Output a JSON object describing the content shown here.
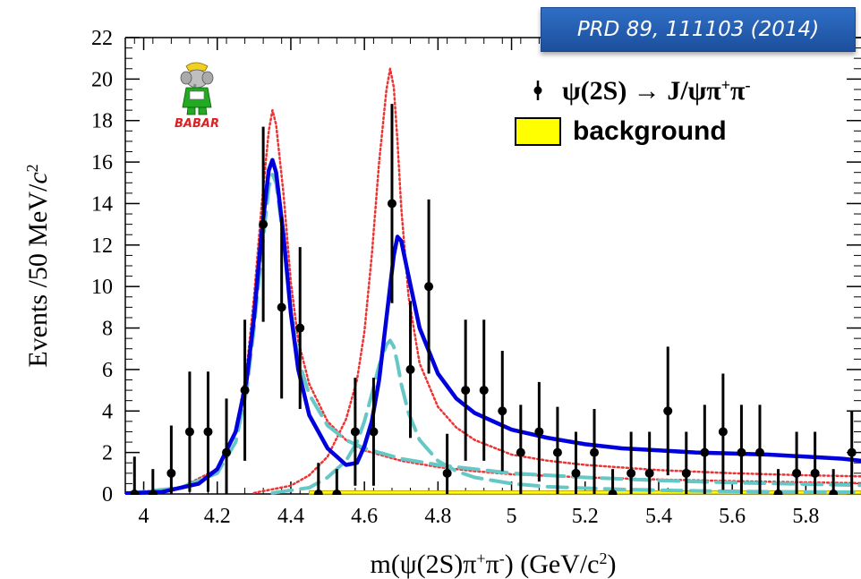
{
  "reference_badge": "PRD 89, 111103 (2014)",
  "logo_text": "BABAR",
  "chart_data": {
    "type": "scatter",
    "title": "",
    "xlabel_parts": [
      "m(ψ(2S)π",
      "+",
      "π",
      "-",
      ") (GeV/c",
      "2",
      ")"
    ],
    "ylabel_parts": [
      "Events /50 MeV/",
      "c",
      "2"
    ],
    "xlim": [
      3.95,
      5.95
    ],
    "ylim": [
      0,
      22
    ],
    "x_ticks": [
      4,
      4.2,
      4.4,
      4.6,
      4.8,
      5,
      5.2,
      5.4,
      5.6,
      5.8
    ],
    "x_tick_labels": [
      "4",
      "4.2",
      "4.4",
      "4.6",
      "4.8",
      "5",
      "5.2",
      "5.4",
      "5.6",
      "5.8"
    ],
    "y_ticks": [
      0,
      2,
      4,
      6,
      8,
      10,
      12,
      14,
      16,
      18,
      20,
      22
    ],
    "y_tick_labels": [
      "0",
      "2",
      "4",
      "6",
      "8",
      "10",
      "12",
      "14",
      "16",
      "18",
      "20",
      "22"
    ],
    "legend": [
      {
        "name_parts": [
          "ψ(2S) → ",
          "J/ψπ",
          "+",
          "π",
          "-"
        ],
        "marker": "point-errorbar"
      },
      {
        "name": "background",
        "marker": "yellow-box",
        "color": "#ffff00"
      }
    ],
    "points": [
      {
        "x": 3.975,
        "y": 0,
        "err": 1.8
      },
      {
        "x": 4.025,
        "y": 0,
        "err": 1.2
      },
      {
        "x": 4.075,
        "y": 1,
        "err": 2.3
      },
      {
        "x": 4.125,
        "y": 3,
        "err": 2.9
      },
      {
        "x": 4.175,
        "y": 3,
        "err": 2.9
      },
      {
        "x": 4.225,
        "y": 2,
        "err": 2.6
      },
      {
        "x": 4.275,
        "y": 5,
        "err": 3.4
      },
      {
        "x": 4.325,
        "y": 13,
        "err": 4.7
      },
      {
        "x": 4.375,
        "y": 9,
        "err": 4.4
      },
      {
        "x": 4.425,
        "y": 8,
        "err": 3.9
      },
      {
        "x": 4.475,
        "y": 0,
        "err": 1.5
      },
      {
        "x": 4.525,
        "y": 0,
        "err": 1.2
      },
      {
        "x": 4.575,
        "y": 3,
        "err": 2.6
      },
      {
        "x": 4.625,
        "y": 3,
        "err": 2.6
      },
      {
        "x": 4.675,
        "y": 14,
        "err": 4.8
      },
      {
        "x": 4.725,
        "y": 6,
        "err": 3.3
      },
      {
        "x": 4.775,
        "y": 10,
        "err": 4.2
      },
      {
        "x": 4.825,
        "y": 1,
        "err": 1.9
      },
      {
        "x": 4.875,
        "y": 5,
        "err": 3.4
      },
      {
        "x": 4.925,
        "y": 5,
        "err": 3.4
      },
      {
        "x": 4.975,
        "y": 4,
        "err": 2.9
      },
      {
        "x": 5.025,
        "y": 2,
        "err": 2.3
      },
      {
        "x": 5.075,
        "y": 3,
        "err": 2.4
      },
      {
        "x": 5.125,
        "y": 2,
        "err": 2.2
      },
      {
        "x": 5.175,
        "y": 1,
        "err": 2.0
      },
      {
        "x": 5.225,
        "y": 2,
        "err": 2.1
      },
      {
        "x": 5.275,
        "y": 0,
        "err": 1.2
      },
      {
        "x": 5.325,
        "y": 1,
        "err": 2.0
      },
      {
        "x": 5.375,
        "y": 1,
        "err": 2.0
      },
      {
        "x": 5.425,
        "y": 4,
        "err": 3.1
      },
      {
        "x": 5.475,
        "y": 1,
        "err": 2.0
      },
      {
        "x": 5.525,
        "y": 2,
        "err": 2.3
      },
      {
        "x": 5.575,
        "y": 3,
        "err": 2.8
      },
      {
        "x": 5.625,
        "y": 2,
        "err": 2.3
      },
      {
        "x": 5.675,
        "y": 2,
        "err": 2.3
      },
      {
        "x": 5.725,
        "y": 0,
        "err": 1.2
      },
      {
        "x": 5.775,
        "y": 1,
        "err": 2.0
      },
      {
        "x": 5.825,
        "y": 1,
        "err": 2.0
      },
      {
        "x": 5.875,
        "y": 0,
        "err": 1.2
      },
      {
        "x": 5.925,
        "y": 2,
        "err": 2.0
      }
    ],
    "curves": [
      {
        "style": "solid",
        "color": "#0000dd",
        "x": [
          3.95,
          4.05,
          4.15,
          4.2,
          4.25,
          4.28,
          4.3,
          4.32,
          4.34,
          4.35,
          4.36,
          4.38,
          4.4,
          4.42,
          4.45,
          4.5,
          4.55,
          4.58,
          4.6,
          4.62,
          4.64,
          4.66,
          4.68,
          4.69,
          4.7,
          4.72,
          4.75,
          4.8,
          4.85,
          4.9,
          5.0,
          5.1,
          5.2,
          5.3,
          5.4,
          5.5,
          5.6,
          5.7,
          5.8,
          5.9,
          5.95
        ],
        "y": [
          0.03,
          0.1,
          0.5,
          1.2,
          3.0,
          5.5,
          8.5,
          12.5,
          15.6,
          16.1,
          15.5,
          12.5,
          8.7,
          6.0,
          3.8,
          2.2,
          1.4,
          1.5,
          2.3,
          3.5,
          5.5,
          8.5,
          11.5,
          12.4,
          12.2,
          10.5,
          8.0,
          5.8,
          4.6,
          3.9,
          3.1,
          2.7,
          2.4,
          2.2,
          2.1,
          2.0,
          1.95,
          1.9,
          1.8,
          1.7,
          1.6
        ]
      },
      {
        "style": "dashed",
        "color": "#66c7c7",
        "x": [
          3.95,
          4.1,
          4.2,
          4.25,
          4.28,
          4.3,
          4.32,
          4.34,
          4.35,
          4.36,
          4.38,
          4.4,
          4.42,
          4.45,
          4.5,
          4.55,
          4.6,
          4.7,
          4.8,
          4.9,
          5.0,
          5.2,
          5.4,
          5.6,
          5.8,
          5.95
        ],
        "y": [
          0.02,
          0.3,
          1.0,
          2.5,
          5.0,
          8.0,
          11.5,
          14.8,
          15.4,
          15.0,
          12.3,
          8.8,
          6.5,
          4.8,
          3.3,
          2.6,
          2.2,
          1.7,
          1.4,
          1.2,
          1.0,
          0.8,
          0.65,
          0.55,
          0.48,
          0.42
        ]
      },
      {
        "style": "dashed",
        "color": "#66c7c7",
        "x": [
          4.35,
          4.45,
          4.5,
          4.55,
          4.58,
          4.6,
          4.62,
          4.64,
          4.66,
          4.67,
          4.68,
          4.69,
          4.7,
          4.72,
          4.75,
          4.8,
          4.85,
          4.9,
          5.0,
          5.1,
          5.2,
          5.3,
          5.4,
          5.5,
          5.6,
          5.7,
          5.8,
          5.9,
          5.95
        ],
        "y": [
          0.05,
          0.3,
          0.8,
          1.6,
          2.5,
          3.5,
          4.8,
          6.2,
          7.2,
          7.4,
          7.1,
          6.3,
          5.3,
          3.9,
          2.6,
          1.6,
          1.1,
          0.8,
          0.5,
          0.35,
          0.28,
          0.22,
          0.18,
          0.15,
          0.13,
          0.11,
          0.1,
          0.09,
          0.09
        ]
      },
      {
        "style": "dotted",
        "color": "#ee3333",
        "x": [
          3.95,
          4.1,
          4.2,
          4.25,
          4.28,
          4.3,
          4.32,
          4.34,
          4.35,
          4.36,
          4.38,
          4.4,
          4.42,
          4.45,
          4.5,
          4.55,
          4.6,
          4.7,
          4.8,
          4.9,
          5.0,
          5.2,
          5.4,
          5.6,
          5.8,
          5.95
        ],
        "y": [
          0.02,
          0.3,
          1.2,
          3.0,
          6.0,
          9.5,
          13.8,
          17.5,
          18.5,
          17.8,
          14.5,
          10.2,
          7.4,
          5.3,
          3.5,
          2.6,
          2.1,
          1.6,
          1.3,
          1.1,
          0.95,
          0.8,
          0.7,
          0.62,
          0.56,
          0.52
        ]
      },
      {
        "style": "dotted",
        "color": "#ee3333",
        "x": [
          4.3,
          4.4,
          4.45,
          4.5,
          4.55,
          4.58,
          4.6,
          4.62,
          4.64,
          4.66,
          4.67,
          4.68,
          4.69,
          4.7,
          4.72,
          4.75,
          4.8,
          4.85,
          4.9,
          5.0,
          5.1,
          5.2,
          5.4,
          5.6,
          5.8,
          5.95
        ],
        "y": [
          0.05,
          0.4,
          0.9,
          1.8,
          3.6,
          5.5,
          7.8,
          11.5,
          16.0,
          19.5,
          20.5,
          19.6,
          17.0,
          13.8,
          9.5,
          6.3,
          4.2,
          3.2,
          2.6,
          1.9,
          1.6,
          1.4,
          1.15,
          1.0,
          0.9,
          0.85
        ]
      }
    ],
    "background_level": 0.15
  }
}
